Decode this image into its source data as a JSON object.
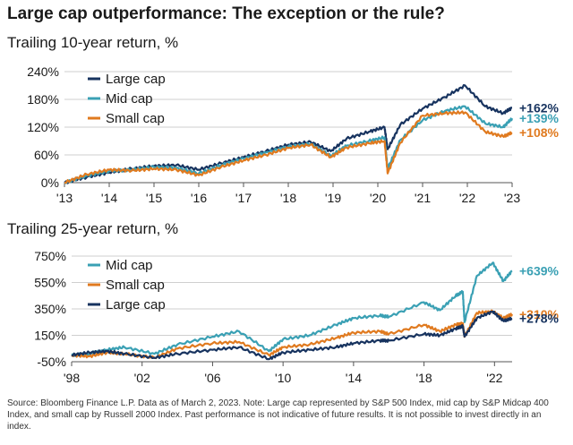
{
  "title": "Large cap outperformance: The exception or the rule?",
  "source": "Source: Bloomberg Finance L.P. Data as of March 2, 2023. Note: Large cap represented by S&P 500 Index, mid cap by S&P Midcap 400 Index, and small cap by Russell 2000 Index. Past performance is not indicative of future results. It is not possible to invest directly in an index.",
  "colors": {
    "large": "#17335f",
    "mid": "#3aa0b4",
    "small": "#e07a1f",
    "grid": "#cfcfcf",
    "axis": "#555555"
  },
  "chart_data": [
    {
      "type": "line",
      "title": "Trailing 10-year return, %",
      "ylim": [
        0,
        240
      ],
      "yticks": [
        "0%",
        "60%",
        "120%",
        "180%",
        "240%"
      ],
      "ytick_values": [
        0,
        60,
        120,
        180,
        240
      ],
      "xlim": [
        2013,
        2023
      ],
      "xticks": [
        "'13",
        "'14",
        "'15",
        "'16",
        "'17",
        "'18",
        "'19",
        "'20",
        "'21",
        "'22",
        "'23"
      ],
      "xtick_values": [
        2013,
        2014,
        2015,
        2016,
        2017,
        2018,
        2019,
        2020,
        2021,
        2022,
        2023
      ],
      "legend": [
        "Large cap",
        "Mid cap",
        "Small cap"
      ],
      "series": [
        {
          "name": "Large cap",
          "key": "large",
          "end_label": "+162%",
          "x": [
            2013,
            2013.5,
            2014,
            2014.5,
            2015,
            2015.5,
            2016,
            2016.5,
            2017,
            2017.5,
            2018,
            2018.5,
            2018.95,
            2019.3,
            2019.8,
            2020.15,
            2020.22,
            2020.5,
            2021,
            2021.5,
            2021.95,
            2022.4,
            2022.8,
            2023
          ],
          "y": [
            0,
            12,
            22,
            30,
            36,
            38,
            28,
            42,
            55,
            68,
            82,
            88,
            68,
            95,
            110,
            120,
            72,
            125,
            160,
            185,
            210,
            165,
            150,
            162
          ]
        },
        {
          "name": "Mid cap",
          "key": "mid",
          "end_label": "+139%",
          "x": [
            2013,
            2013.5,
            2014,
            2014.5,
            2015,
            2015.5,
            2016,
            2016.5,
            2017,
            2017.5,
            2018,
            2018.5,
            2018.95,
            2019.3,
            2019.8,
            2020.15,
            2020.22,
            2020.5,
            2021,
            2021.5,
            2021.95,
            2022.4,
            2022.8,
            2023
          ],
          "y": [
            0,
            15,
            25,
            28,
            34,
            32,
            20,
            38,
            52,
            65,
            78,
            84,
            58,
            80,
            90,
            98,
            30,
            92,
            135,
            155,
            165,
            128,
            120,
            139
          ]
        },
        {
          "name": "Small cap",
          "key": "small",
          "end_label": "+108%",
          "x": [
            2013,
            2013.5,
            2014,
            2014.5,
            2015,
            2015.5,
            2016,
            2016.5,
            2017,
            2017.5,
            2018,
            2018.5,
            2018.95,
            2019.3,
            2019.8,
            2020.15,
            2020.22,
            2020.5,
            2021,
            2021.5,
            2021.95,
            2022.4,
            2022.8,
            2023
          ],
          "y": [
            0,
            18,
            28,
            26,
            30,
            28,
            16,
            34,
            48,
            60,
            75,
            82,
            55,
            76,
            85,
            90,
            20,
            86,
            145,
            150,
            152,
            110,
            100,
            108
          ]
        }
      ]
    },
    {
      "type": "line",
      "title": "Trailing 25-year return, %",
      "ylim": [
        -50,
        750
      ],
      "yticks": [
        "-50%",
        "150%",
        "350%",
        "550%",
        "750%"
      ],
      "ytick_values": [
        -50,
        150,
        350,
        550,
        750
      ],
      "xlim": [
        1998,
        2023
      ],
      "xticks": [
        "'98",
        "'02",
        "'06",
        "'10",
        "'14",
        "'18",
        "'22"
      ],
      "xtick_values": [
        1998,
        2002,
        2006,
        2010,
        2014,
        2018,
        2022
      ],
      "legend": [
        "Mid cap",
        "Small cap",
        "Large cap"
      ],
      "series": [
        {
          "name": "Mid cap",
          "key": "mid",
          "end_label": "+639%",
          "x": [
            1998,
            1999,
            2000,
            2001,
            2002.7,
            2004,
            2006,
            2007.5,
            2009.2,
            2010,
            2011.5,
            2013,
            2014,
            2015.5,
            2016,
            2018,
            2018.9,
            2019.8,
            2020.2,
            2020.3,
            2021,
            2021.9,
            2022.5,
            2023
          ],
          "y": [
            0,
            10,
            40,
            60,
            10,
            80,
            140,
            180,
            30,
            120,
            150,
            230,
            280,
            300,
            290,
            400,
            340,
            450,
            480,
            250,
            600,
            700,
            560,
            639
          ]
        },
        {
          "name": "Small cap",
          "key": "small",
          "end_label": "+310%",
          "x": [
            1998,
            1999,
            2000,
            2001,
            2002.7,
            2004,
            2006,
            2007.5,
            2009.2,
            2010,
            2011.5,
            2013,
            2014,
            2015.5,
            2016,
            2018,
            2018.9,
            2019.8,
            2020.2,
            2020.3,
            2021,
            2021.9,
            2022.5,
            2023
          ],
          "y": [
            0,
            -10,
            20,
            10,
            -20,
            50,
            90,
            100,
            0,
            60,
            80,
            130,
            170,
            180,
            160,
            230,
            180,
            230,
            240,
            140,
            320,
            330,
            280,
            310
          ]
        },
        {
          "name": "Large cap",
          "key": "large",
          "end_label": "+278%",
          "x": [
            1998,
            1999,
            2000,
            2001,
            2002.7,
            2004,
            2006,
            2007.5,
            2009.2,
            2010,
            2011.5,
            2013,
            2014,
            2015.5,
            2016,
            2018,
            2018.9,
            2019.8,
            2020.2,
            2020.3,
            2021,
            2021.9,
            2022.5,
            2023
          ],
          "y": [
            0,
            20,
            30,
            10,
            -20,
            10,
            40,
            60,
            -30,
            20,
            40,
            60,
            90,
            110,
            110,
            160,
            150,
            200,
            220,
            140,
            280,
            330,
            260,
            278
          ]
        }
      ]
    }
  ]
}
